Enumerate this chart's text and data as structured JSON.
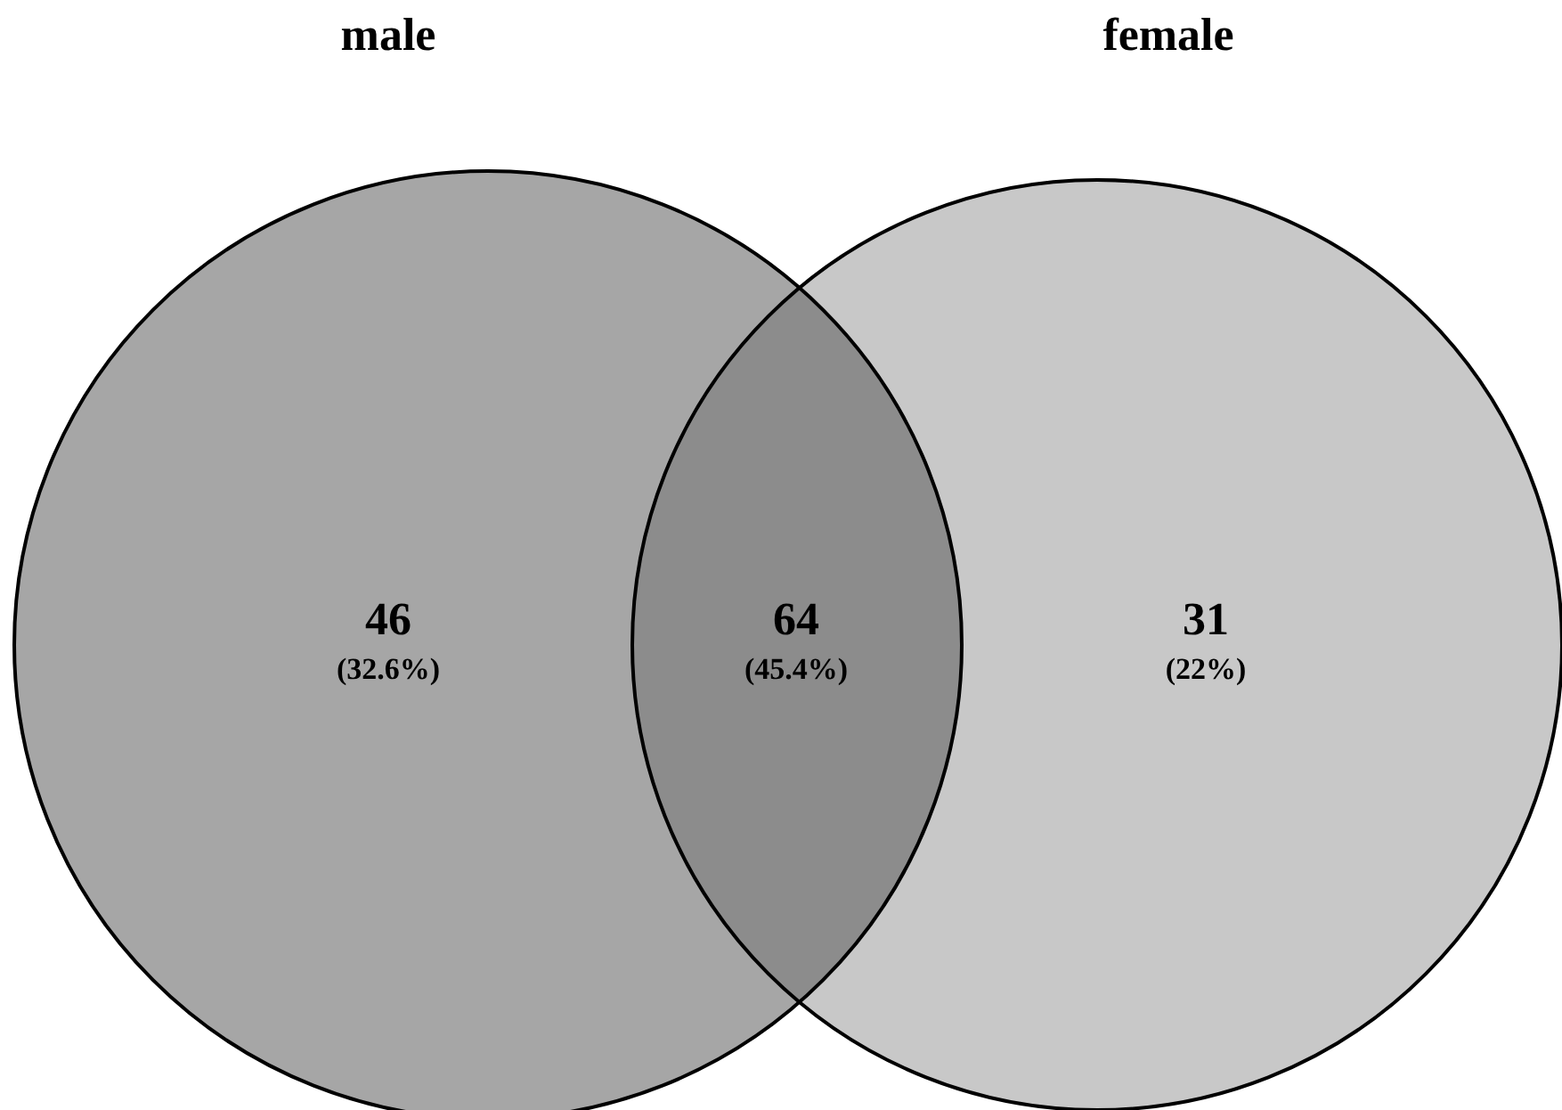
{
  "chart_data": {
    "type": "other",
    "categories": [
      "male",
      null,
      "female"
    ],
    "values": [
      46,
      64,
      31
    ],
    "colors": [
      "#a6a6a6",
      "#8c8c8c",
      "#c8c8c8"
    ],
    "data_labels": true,
    "annotations": [
      "(32.6%)",
      "(45.4%)",
      "(22%)"
    ]
  }
}
